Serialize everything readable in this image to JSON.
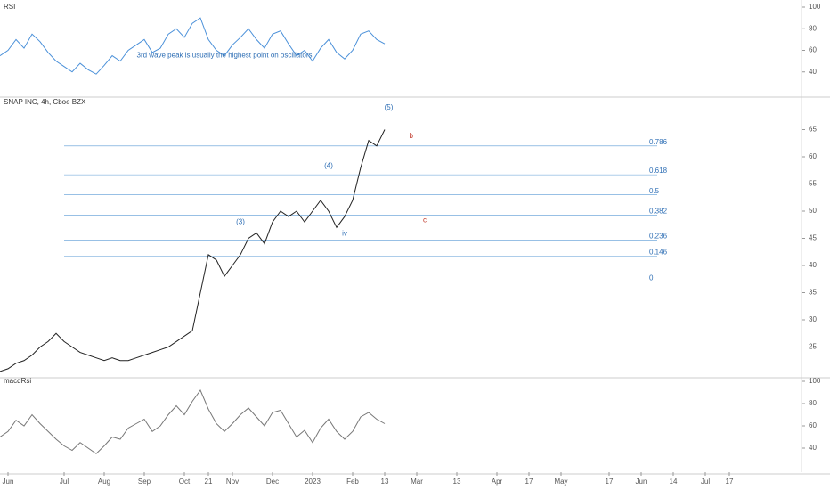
{
  "chart_data": [
    {
      "type": "line",
      "title": "RSI",
      "color": "#4a90d9",
      "ylim": [
        20,
        100
      ],
      "yticks": [
        40,
        60,
        80,
        100
      ],
      "values": [
        55,
        60,
        70,
        62,
        75,
        68,
        58,
        50,
        45,
        40,
        48,
        42,
        38,
        46,
        55,
        50,
        60,
        65,
        70,
        58,
        62,
        75,
        80,
        72,
        85,
        90,
        70,
        60,
        55,
        65,
        72,
        80,
        70,
        62,
        75,
        78,
        66,
        55,
        60,
        50,
        62,
        70,
        58,
        52,
        60,
        75,
        78,
        70,
        66
      ],
      "annotations": [
        {
          "x": 28,
          "y": 55,
          "text": "3rd wave peak is usually the highest point on oscillators"
        }
      ]
    },
    {
      "type": "line",
      "title": "SNAP INC, 4h, Cboe BZX",
      "color": "#222",
      "ylim": [
        20,
        70
      ],
      "yticks": [
        25,
        30,
        35,
        40,
        45,
        50,
        55,
        60,
        65
      ],
      "values": [
        20.5,
        21,
        22,
        22.5,
        23.5,
        25,
        26,
        27.5,
        26,
        25,
        24,
        23.5,
        23,
        22.5,
        23,
        22.5,
        22.5,
        23,
        23.5,
        24,
        24.5,
        25,
        26,
        27,
        28,
        35,
        42,
        41,
        38,
        40,
        42,
        45,
        46,
        44,
        48,
        50,
        49,
        50,
        48,
        50,
        52,
        50,
        47,
        49,
        52,
        58,
        63,
        62,
        65
      ],
      "fib_levels": [
        {
          "label": "0.786",
          "value": 62
        },
        {
          "label": "0.618",
          "value": 56.7
        },
        {
          "label": "0.5",
          "value": 53
        },
        {
          "label": "0.382",
          "value": 49.3
        },
        {
          "label": "0.236",
          "value": 44.7
        },
        {
          "label": "0.146",
          "value": 41.7
        },
        {
          "label": "0",
          "value": 37
        }
      ],
      "annotations": [
        {
          "x": 30,
          "y": 48,
          "text": "(3)"
        },
        {
          "x": 41,
          "y": 58.3,
          "text": "(4)"
        },
        {
          "x": 48.5,
          "y": 69,
          "text": "(5)"
        },
        {
          "x": 51.3,
          "y": 63.8,
          "text": "b"
        },
        {
          "x": 53,
          "y": 48.3,
          "text": "c"
        },
        {
          "x": 43,
          "y": 45.8,
          "text": "iv"
        }
      ]
    },
    {
      "type": "line",
      "title": "macdRsi",
      "color": "#777",
      "ylim": [
        20,
        100
      ],
      "yticks": [
        40,
        60,
        80,
        100
      ],
      "values": [
        50,
        55,
        65,
        60,
        70,
        62,
        55,
        48,
        42,
        38,
        45,
        40,
        35,
        42,
        50,
        48,
        58,
        62,
        66,
        55,
        60,
        70,
        78,
        70,
        82,
        92,
        75,
        62,
        55,
        62,
        70,
        76,
        68,
        60,
        72,
        74,
        62,
        50,
        56,
        45,
        58,
        66,
        55,
        48,
        55,
        68,
        72,
        66,
        62
      ],
      "xlim": [
        0,
        100
      ],
      "xticks": [
        {
          "value": 1,
          "label": "Jun"
        },
        {
          "value": 8,
          "label": "Jul"
        },
        {
          "value": 13,
          "label": "Aug"
        },
        {
          "value": 18,
          "label": "Sep"
        },
        {
          "value": 23,
          "label": "Oct"
        },
        {
          "value": 26,
          "label": "21"
        },
        {
          "value": 29,
          "label": "Nov"
        },
        {
          "value": 34,
          "label": "Dec"
        },
        {
          "value": 39,
          "label": "2023"
        },
        {
          "value": 44,
          "label": "Feb"
        },
        {
          "value": 48,
          "label": "13"
        },
        {
          "value": 52,
          "label": "Mar"
        },
        {
          "value": 57,
          "label": "13"
        },
        {
          "value": 62,
          "label": "Apr"
        },
        {
          "value": 66,
          "label": "17"
        },
        {
          "value": 70,
          "label": "May"
        },
        {
          "value": 76,
          "label": "17"
        },
        {
          "value": 80,
          "label": "Jun"
        },
        {
          "value": 84,
          "label": "14"
        },
        {
          "value": 88,
          "label": "Jul"
        },
        {
          "value": 91,
          "label": "17"
        }
      ]
    }
  ]
}
